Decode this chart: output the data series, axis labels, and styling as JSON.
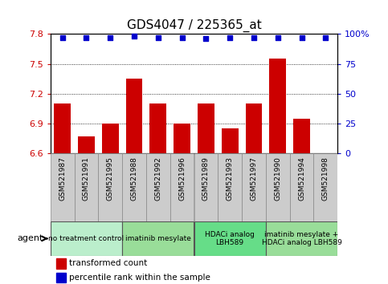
{
  "title": "GDS4047 / 225365_at",
  "samples": [
    "GSM521987",
    "GSM521991",
    "GSM521995",
    "GSM521988",
    "GSM521992",
    "GSM521996",
    "GSM521989",
    "GSM521993",
    "GSM521997",
    "GSM521990",
    "GSM521994",
    "GSM521998"
  ],
  "bar_values": [
    7.1,
    6.77,
    6.9,
    7.35,
    7.1,
    6.9,
    7.1,
    6.85,
    7.1,
    7.55,
    6.95,
    6.6
  ],
  "dot_values": [
    97,
    97,
    97,
    98,
    97,
    97,
    96,
    97,
    97,
    97,
    97,
    97
  ],
  "bar_color": "#cc0000",
  "dot_color": "#0000cc",
  "ymin": 6.6,
  "ymax": 7.8,
  "yticks": [
    6.6,
    6.9,
    7.2,
    7.5,
    7.8
  ],
  "ytick_labels": [
    "6.6",
    "6.9",
    "7.2",
    "7.5",
    "7.8"
  ],
  "y2min": 0,
  "y2max": 100,
  "y2ticks": [
    0,
    25,
    50,
    75,
    100
  ],
  "y2ticklabels": [
    "0",
    "25",
    "50",
    "75",
    "100%"
  ],
  "groups": [
    {
      "label": "no treatment control",
      "start": 0,
      "end": 3,
      "color": "#bbeecc"
    },
    {
      "label": "imatinib mesylate",
      "start": 3,
      "end": 6,
      "color": "#99dd99"
    },
    {
      "label": "HDACi analog\nLBH589",
      "start": 6,
      "end": 9,
      "color": "#66dd88"
    },
    {
      "label": "imatinib mesylate +\nHDACi analog LBH589",
      "start": 9,
      "end": 12,
      "color": "#99dd99"
    }
  ],
  "legend_bar_label": "transformed count",
  "legend_dot_label": "percentile rank within the sample",
  "agent_label": "agent",
  "left_color": "#cc0000",
  "right_color": "#0000cc",
  "sample_box_color": "#cccccc",
  "title_fontsize": 11,
  "bar_width": 0.7
}
